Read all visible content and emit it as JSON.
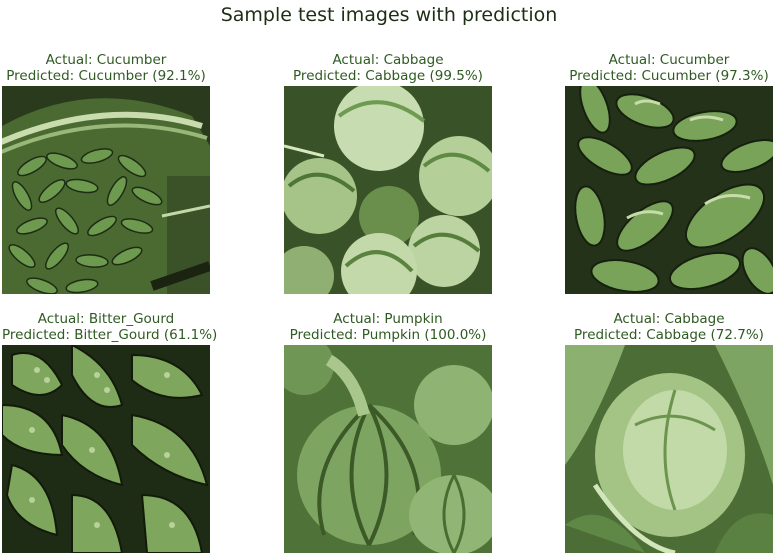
{
  "figure": {
    "title": "Sample test images with prediction"
  },
  "panels": [
    {
      "actual": "Actual: Cucumber",
      "predicted": "Predicted: Cucumber (92.1%)",
      "subject": "cucumbers-in-basket"
    },
    {
      "actual": "Actual: Cabbage",
      "predicted": "Predicted: Cabbage (99.5%)",
      "subject": "cabbages-heap"
    },
    {
      "actual": "Actual: Cucumber",
      "predicted": "Predicted: Cucumber (97.3%)",
      "subject": "cucumbers-pile"
    },
    {
      "actual": "Actual: Bitter_Gourd",
      "predicted": "Predicted: Bitter_Gourd (61.1%)",
      "subject": "bitter-gourds-pile"
    },
    {
      "actual": "Actual: Pumpkin",
      "predicted": "Predicted: Pumpkin (100.0%)",
      "subject": "green-pumpkins"
    },
    {
      "actual": "Actual: Cabbage",
      "predicted": "Predicted: Cabbage (72.7%)",
      "subject": "cabbage-closeup"
    }
  ],
  "colors": {
    "dark": "#1e2c14",
    "mid": "#5d8a44",
    "light": "#a8c98a",
    "pale": "#d6e8c0",
    "caption": "#2f5a22"
  }
}
